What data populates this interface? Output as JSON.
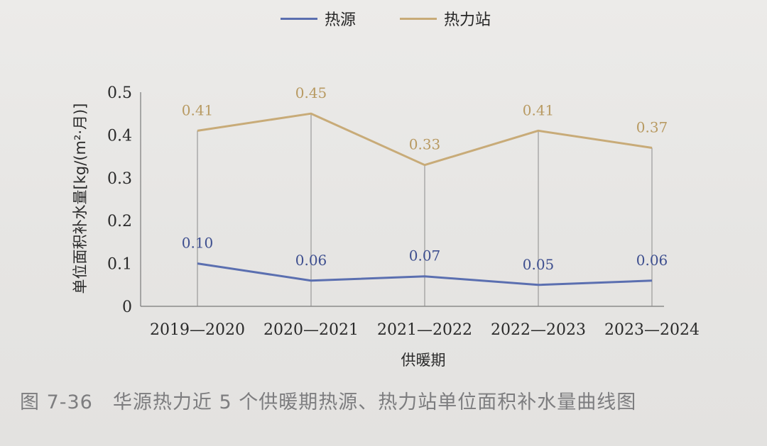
{
  "chart_data": {
    "type": "line",
    "categories": [
      "2019—2020",
      "2020—2021",
      "2021—2022",
      "2022—2023",
      "2023—2024"
    ],
    "series": [
      {
        "name": "热源",
        "values": [
          0.1,
          0.06,
          0.07,
          0.05,
          0.06
        ],
        "labels": [
          "0.10",
          "0.06",
          "0.07",
          "0.05",
          "0.06"
        ],
        "color": "#5b6fb0"
      },
      {
        "name": "热力站",
        "values": [
          0.41,
          0.45,
          0.33,
          0.41,
          0.37
        ],
        "labels": [
          "0.41",
          "0.45",
          "0.33",
          "0.41",
          "0.37"
        ],
        "color": "#c8ab78"
      }
    ],
    "xlabel": "供暖期",
    "ylabel": "单位面积补水量[kg/(m²·月)]",
    "ylim": [
      0,
      0.5
    ],
    "yticks": [
      "0",
      "0.1",
      "0.2",
      "0.3",
      "0.4",
      "0.5"
    ],
    "legend_position": "top-center",
    "grid": false
  },
  "caption": "图 7-36　华源热力近 5 个供暖期热源、热力站单位面积补水量曲线图"
}
